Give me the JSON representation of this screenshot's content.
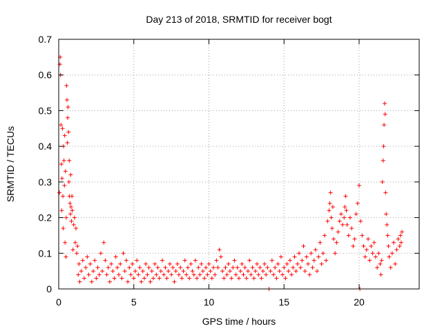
{
  "chart_data": {
    "type": "scatter",
    "title": "Day 213 of 2018, SRMTID for receiver bogt",
    "xlabel": "GPS time / hours",
    "ylabel": "SRMTID / TECUs",
    "xlim": [
      0,
      24
    ],
    "ylim": [
      0,
      0.7
    ],
    "xticks": [
      0,
      5,
      10,
      15,
      20
    ],
    "yticks": [
      0,
      0.1,
      0.2,
      0.3,
      0.4,
      0.5,
      0.6,
      0.7
    ],
    "xtick_labels": [
      "0",
      "5",
      "10",
      "15",
      "20"
    ],
    "ytick_labels": [
      "0",
      "0.1",
      "0.2",
      "0.3",
      "0.4",
      "0.5",
      "0.6",
      "0.7"
    ],
    "grid": true,
    "marker": "+",
    "color": "#ff0000",
    "series": [
      {
        "name": "SRMTID",
        "points": [
          [
            0.05,
            0.27
          ],
          [
            0.08,
            0.63
          ],
          [
            0.1,
            0.65
          ],
          [
            0.12,
            0.6
          ],
          [
            0.15,
            0.46
          ],
          [
            0.18,
            0.35
          ],
          [
            0.2,
            0.22
          ],
          [
            0.22,
            0.31
          ],
          [
            0.25,
            0.45
          ],
          [
            0.28,
            0.26
          ],
          [
            0.3,
            0.17
          ],
          [
            0.32,
            0.4
          ],
          [
            0.35,
            0.36
          ],
          [
            0.38,
            0.29
          ],
          [
            0.4,
            0.43
          ],
          [
            0.42,
            0.13
          ],
          [
            0.45,
            0.33
          ],
          [
            0.48,
            0.09
          ],
          [
            0.5,
            0.2
          ],
          [
            0.52,
            0.57
          ],
          [
            0.55,
            0.53
          ],
          [
            0.58,
            0.41
          ],
          [
            0.6,
            0.48
          ],
          [
            0.62,
            0.51
          ],
          [
            0.65,
            0.44
          ],
          [
            0.68,
            0.3
          ],
          [
            0.7,
            0.36
          ],
          [
            0.72,
            0.26
          ],
          [
            0.75,
            0.24
          ],
          [
            0.78,
            0.21
          ],
          [
            0.8,
            0.32
          ],
          [
            0.82,
            0.23
          ],
          [
            0.85,
            0.19
          ],
          [
            0.88,
            0.26
          ],
          [
            0.9,
            0.22
          ],
          [
            0.95,
            0.11
          ],
          [
            1.0,
            0.18
          ],
          [
            1.05,
            0.2
          ],
          [
            1.1,
            0.13
          ],
          [
            1.15,
            0.17
          ],
          [
            1.2,
            0.1
          ],
          [
            1.25,
            0.12
          ],
          [
            1.3,
            0.04
          ],
          [
            1.35,
            0.07
          ],
          [
            1.4,
            0.02
          ],
          [
            1.5,
            0.05
          ],
          [
            1.6,
            0.08
          ],
          [
            1.7,
            0.03
          ],
          [
            1.8,
            0.06
          ],
          [
            1.9,
            0.09
          ],
          [
            2.0,
            0.04
          ],
          [
            2.1,
            0.07
          ],
          [
            2.2,
            0.02
          ],
          [
            2.3,
            0.05
          ],
          [
            2.4,
            0.08
          ],
          [
            2.5,
            0.03
          ],
          [
            2.6,
            0.06
          ],
          [
            2.7,
            0.04
          ],
          [
            2.8,
            0.1
          ],
          [
            2.9,
            0.05
          ],
          [
            3.0,
            0.13
          ],
          [
            3.1,
            0.08
          ],
          [
            3.2,
            0.04
          ],
          [
            3.3,
            0.06
          ],
          [
            3.4,
            0.02
          ],
          [
            3.5,
            0.07
          ],
          [
            3.6,
            0.05
          ],
          [
            3.7,
            0.03
          ],
          [
            3.8,
            0.09
          ],
          [
            3.9,
            0.06
          ],
          [
            4.0,
            0.04
          ],
          [
            4.1,
            0.07
          ],
          [
            4.2,
            0.03
          ],
          [
            4.3,
            0.1
          ],
          [
            4.4,
            0.05
          ],
          [
            4.5,
            0.08
          ],
          [
            4.6,
            0.02
          ],
          [
            4.7,
            0.06
          ],
          [
            4.8,
            0.04
          ],
          [
            4.9,
            0.07
          ],
          [
            5.0,
            0.03
          ],
          [
            5.1,
            0.05
          ],
          [
            5.2,
            0.08
          ],
          [
            5.3,
            0.04
          ],
          [
            5.4,
            0.06
          ],
          [
            5.5,
            0.02
          ],
          [
            5.6,
            0.05
          ],
          [
            5.7,
            0.03
          ],
          [
            5.8,
            0.07
          ],
          [
            5.9,
            0.04
          ],
          [
            6.0,
            0.06
          ],
          [
            6.1,
            0.02
          ],
          [
            6.2,
            0.05
          ],
          [
            6.3,
            0.03
          ],
          [
            6.4,
            0.07
          ],
          [
            6.5,
            0.04
          ],
          [
            6.6,
            0.06
          ],
          [
            6.7,
            0.03
          ],
          [
            6.8,
            0.05
          ],
          [
            6.9,
            0.08
          ],
          [
            7.0,
            0.04
          ],
          [
            7.1,
            0.06
          ],
          [
            7.2,
            0.03
          ],
          [
            7.3,
            0.05
          ],
          [
            7.4,
            0.07
          ],
          [
            7.5,
            0.04
          ],
          [
            7.6,
            0.06
          ],
          [
            7.7,
            0.02
          ],
          [
            7.8,
            0.05
          ],
          [
            7.9,
            0.07
          ],
          [
            8.0,
            0.04
          ],
          [
            8.1,
            0.06
          ],
          [
            8.2,
            0.03
          ],
          [
            8.3,
            0.05
          ],
          [
            8.4,
            0.08
          ],
          [
            8.5,
            0.04
          ],
          [
            8.6,
            0.06
          ],
          [
            8.7,
            0.03
          ],
          [
            8.8,
            0.07
          ],
          [
            8.9,
            0.05
          ],
          [
            9.0,
            0.04
          ],
          [
            9.1,
            0.08
          ],
          [
            9.2,
            0.03
          ],
          [
            9.3,
            0.06
          ],
          [
            9.4,
            0.04
          ],
          [
            9.5,
            0.07
          ],
          [
            9.6,
            0.05
          ],
          [
            9.7,
            0.03
          ],
          [
            9.8,
            0.06
          ],
          [
            9.9,
            0.04
          ],
          [
            10.0,
            0.07
          ],
          [
            10.1,
            0.05
          ],
          [
            10.2,
            0.03
          ],
          [
            10.3,
            0.06
          ],
          [
            10.4,
            0.04
          ],
          [
            10.5,
            0.08
          ],
          [
            10.6,
            0.06
          ],
          [
            10.7,
            0.11
          ],
          [
            10.8,
            0.09
          ],
          [
            10.9,
            0.05
          ],
          [
            11.0,
            0.03
          ],
          [
            11.1,
            0.06
          ],
          [
            11.2,
            0.04
          ],
          [
            11.3,
            0.07
          ],
          [
            11.4,
            0.05
          ],
          [
            11.5,
            0.03
          ],
          [
            11.6,
            0.06
          ],
          [
            11.7,
            0.08
          ],
          [
            11.8,
            0.04
          ],
          [
            11.9,
            0.06
          ],
          [
            12.0,
            0.03
          ],
          [
            12.1,
            0.05
          ],
          [
            12.2,
            0.07
          ],
          [
            12.3,
            0.04
          ],
          [
            12.4,
            0.06
          ],
          [
            12.5,
            0.03
          ],
          [
            12.6,
            0.05
          ],
          [
            12.7,
            0.08
          ],
          [
            12.8,
            0.04
          ],
          [
            12.9,
            0.06
          ],
          [
            13.0,
            0.03
          ],
          [
            13.1,
            0.05
          ],
          [
            13.2,
            0.07
          ],
          [
            13.3,
            0.04
          ],
          [
            13.4,
            0.06
          ],
          [
            13.5,
            0.03
          ],
          [
            13.6,
            0.05
          ],
          [
            13.7,
            0.07
          ],
          [
            13.8,
            0.04
          ],
          [
            13.9,
            0.06
          ],
          [
            14.0,
            0.0
          ],
          [
            14.1,
            0.05
          ],
          [
            14.2,
            0.08
          ],
          [
            14.3,
            0.04
          ],
          [
            14.4,
            0.06
          ],
          [
            14.5,
            0.03
          ],
          [
            14.6,
            0.07
          ],
          [
            14.7,
            0.05
          ],
          [
            14.8,
            0.09
          ],
          [
            14.9,
            0.04
          ],
          [
            15.0,
            0.06
          ],
          [
            15.1,
            0.03
          ],
          [
            15.2,
            0.07
          ],
          [
            15.3,
            0.05
          ],
          [
            15.4,
            0.08
          ],
          [
            15.5,
            0.04
          ],
          [
            15.6,
            0.06
          ],
          [
            15.7,
            0.09
          ],
          [
            15.8,
            0.05
          ],
          [
            15.9,
            0.07
          ],
          [
            16.0,
            0.1
          ],
          [
            16.1,
            0.06
          ],
          [
            16.2,
            0.08
          ],
          [
            16.3,
            0.12
          ],
          [
            16.4,
            0.05
          ],
          [
            16.5,
            0.09
          ],
          [
            16.6,
            0.07
          ],
          [
            16.7,
            0.04
          ],
          [
            16.8,
            0.1
          ],
          [
            16.9,
            0.06
          ],
          [
            17.0,
            0.08
          ],
          [
            17.1,
            0.11
          ],
          [
            17.2,
            0.05
          ],
          [
            17.3,
            0.09
          ],
          [
            17.4,
            0.13
          ],
          [
            17.5,
            0.07
          ],
          [
            17.6,
            0.1
          ],
          [
            17.7,
            0.15
          ],
          [
            17.8,
            0.08
          ],
          [
            17.9,
            0.19
          ],
          [
            18.0,
            0.22
          ],
          [
            18.05,
            0.24
          ],
          [
            18.1,
            0.27
          ],
          [
            18.15,
            0.2
          ],
          [
            18.2,
            0.17
          ],
          [
            18.25,
            0.23
          ],
          [
            18.3,
            0.14
          ],
          [
            18.4,
            0.1
          ],
          [
            18.5,
            0.13
          ],
          [
            18.6,
            0.16
          ],
          [
            18.7,
            0.19
          ],
          [
            18.8,
            0.21
          ],
          [
            18.9,
            0.18
          ],
          [
            19.0,
            0.2
          ],
          [
            19.05,
            0.23
          ],
          [
            19.1,
            0.26
          ],
          [
            19.15,
            0.22
          ],
          [
            19.2,
            0.18
          ],
          [
            19.3,
            0.15
          ],
          [
            19.4,
            0.2
          ],
          [
            19.5,
            0.17
          ],
          [
            19.6,
            0.12
          ],
          [
            19.7,
            0.14
          ],
          [
            19.8,
            0.21
          ],
          [
            19.9,
            0.24
          ],
          [
            20.0,
            0.29
          ],
          [
            20.05,
            0.0
          ],
          [
            20.1,
            0.19
          ],
          [
            20.2,
            0.15
          ],
          [
            20.3,
            0.12
          ],
          [
            20.4,
            0.09
          ],
          [
            20.5,
            0.11
          ],
          [
            20.6,
            0.14
          ],
          [
            20.7,
            0.08
          ],
          [
            20.8,
            0.12
          ],
          [
            20.9,
            0.1
          ],
          [
            21.0,
            0.13
          ],
          [
            21.1,
            0.09
          ],
          [
            21.2,
            0.06
          ],
          [
            21.3,
            0.1
          ],
          [
            21.4,
            0.07
          ],
          [
            21.45,
            0.04
          ],
          [
            21.5,
            0.08
          ],
          [
            21.55,
            0.3
          ],
          [
            21.6,
            0.36
          ],
          [
            21.63,
            0.4
          ],
          [
            21.66,
            0.46
          ],
          [
            21.7,
            0.52
          ],
          [
            21.73,
            0.49
          ],
          [
            21.76,
            0.27
          ],
          [
            21.8,
            0.21
          ],
          [
            21.85,
            0.18
          ],
          [
            21.9,
            0.15
          ],
          [
            21.95,
            0.12
          ],
          [
            22.0,
            0.09
          ],
          [
            22.1,
            0.06
          ],
          [
            22.2,
            0.1
          ],
          [
            22.3,
            0.13
          ],
          [
            22.4,
            0.07
          ],
          [
            22.5,
            0.11
          ],
          [
            22.6,
            0.14
          ],
          [
            22.7,
            0.12
          ],
          [
            22.75,
            0.15
          ],
          [
            22.8,
            0.13
          ],
          [
            22.85,
            0.16
          ]
        ]
      }
    ]
  }
}
